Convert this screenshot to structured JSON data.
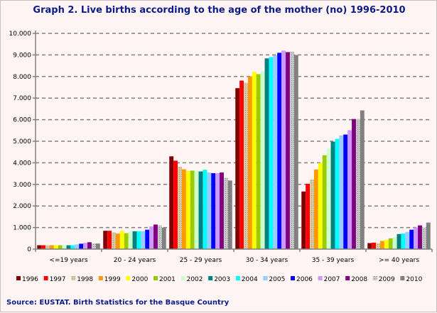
{
  "chart_data": {
    "type": "bar",
    "title": "Graph 2. Live births according to the age of the mother (no) 1996-2010",
    "source": "Source: EUSTAT. Birth Statistics for the Basque Country",
    "xlabel": "",
    "ylabel": "",
    "ylim": [
      0,
      10000
    ],
    "yticks": [
      "0",
      "1.000",
      "2.000",
      "3.000",
      "4.000",
      "5.000",
      "6.000",
      "7.000",
      "8.000",
      "9.000",
      "10.000"
    ],
    "grid": true,
    "legend_position": "bottom",
    "categories": [
      "<=19 years",
      "20 - 24 years",
      "25 - 29 years",
      "30 - 34 years",
      "35 - 39 years",
      ">= 40 years"
    ],
    "series": [
      {
        "name": "1996",
        "color": "#800000",
        "values": [
          180,
          850,
          4300,
          7460,
          2670,
          280
        ]
      },
      {
        "name": "1997",
        "color": "#ff0000",
        "values": [
          180,
          850,
          4100,
          7810,
          3030,
          300
        ]
      },
      {
        "name": "1998",
        "color": "#d8d0a0",
        "values": [
          180,
          780,
          3820,
          7710,
          3230,
          270
        ]
      },
      {
        "name": "1999",
        "color": "#ff9900",
        "values": [
          180,
          720,
          3700,
          8010,
          3690,
          380
        ]
      },
      {
        "name": "2000",
        "color": "#ffff00",
        "values": [
          180,
          850,
          3620,
          8210,
          3990,
          430
        ]
      },
      {
        "name": "2001",
        "color": "#99cc00",
        "values": [
          180,
          740,
          3640,
          8110,
          4350,
          500
        ]
      },
      {
        "name": "2002",
        "color": "#ccffcc",
        "values": [
          180,
          830,
          3640,
          8250,
          4660,
          550
        ]
      },
      {
        "name": "2003",
        "color": "#008080",
        "values": [
          180,
          830,
          3600,
          8840,
          4980,
          700
        ]
      },
      {
        "name": "2004",
        "color": "#00ffff",
        "values": [
          180,
          830,
          3680,
          8900,
          5110,
          720
        ]
      },
      {
        "name": "2005",
        "color": "#99ccff",
        "values": [
          220,
          830,
          3550,
          8980,
          5270,
          800
        ]
      },
      {
        "name": "2006",
        "color": "#0000ff",
        "values": [
          250,
          900,
          3520,
          9100,
          5310,
          900
        ]
      },
      {
        "name": "2007",
        "color": "#cc99ff",
        "values": [
          290,
          1050,
          3520,
          9200,
          5510,
          1000
        ]
      },
      {
        "name": "2008",
        "color": "#800080",
        "values": [
          320,
          1140,
          3550,
          9130,
          6030,
          1100
        ]
      },
      {
        "name": "2009",
        "color": "#c0c0c0",
        "values": [
          260,
          1100,
          3300,
          9160,
          6030,
          1000
        ]
      },
      {
        "name": "2010",
        "color": "#808080",
        "values": [
          260,
          1000,
          3180,
          9000,
          6430,
          1230
        ]
      }
    ]
  }
}
